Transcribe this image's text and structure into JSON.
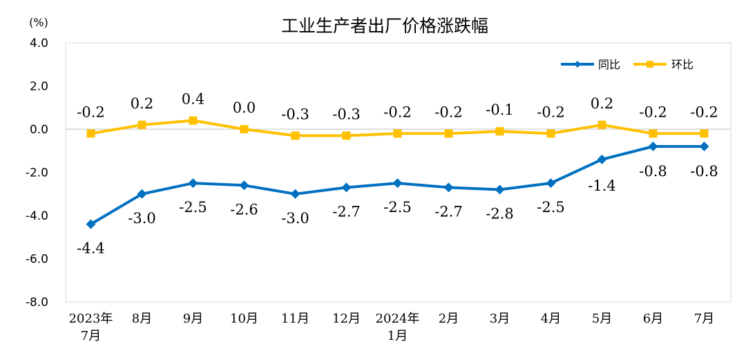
{
  "chart_data": {
    "type": "line",
    "title": "工业生产者出厂价格涨跌幅",
    "unit_label": "(%)",
    "ylim": [
      -8.0,
      4.0
    ],
    "yticks": [
      "4.0",
      "2.0",
      "0.0",
      "-2.0",
      "-4.0",
      "-6.0",
      "-8.0"
    ],
    "ytick_values": [
      4,
      2,
      0,
      -2,
      -4,
      -6,
      -8
    ],
    "categories": [
      [
        "2023年",
        "7月"
      ],
      [
        "8月"
      ],
      [
        "9月"
      ],
      [
        "10月"
      ],
      [
        "11月"
      ],
      [
        "12月"
      ],
      [
        "2024年",
        "1月"
      ],
      [
        "2月"
      ],
      [
        "3月"
      ],
      [
        "4月"
      ],
      [
        "5月"
      ],
      [
        "6月"
      ],
      [
        "7月"
      ]
    ],
    "series": [
      {
        "name": "同比",
        "color": "#0070C0",
        "values": [
          -4.4,
          -3.0,
          -2.5,
          -2.6,
          -3.0,
          -2.7,
          -2.5,
          -2.7,
          -2.8,
          -2.5,
          -1.4,
          -0.8,
          -0.8
        ],
        "labels": [
          "-4.4",
          "-3.0",
          "-2.5",
          "-2.6",
          "-3.0",
          "-2.7",
          "-2.5",
          "-2.7",
          "-2.8",
          "-2.5",
          "-1.4",
          "-0.8",
          "-0.8"
        ],
        "marker": "diamond"
      },
      {
        "name": "环比",
        "color": "#FFC000",
        "values": [
          -0.2,
          0.2,
          0.4,
          0.0,
          -0.3,
          -0.3,
          -0.2,
          -0.2,
          -0.1,
          -0.2,
          0.2,
          -0.2,
          -0.2
        ],
        "labels": [
          "-0.2",
          "0.2",
          "0.4",
          "0.0",
          "-0.3",
          "-0.3",
          "-0.2",
          "-0.2",
          "-0.1",
          "-0.2",
          "0.2",
          "-0.2",
          "-0.2"
        ],
        "marker": "square"
      }
    ],
    "legend_position": "top-right",
    "grid": false
  }
}
